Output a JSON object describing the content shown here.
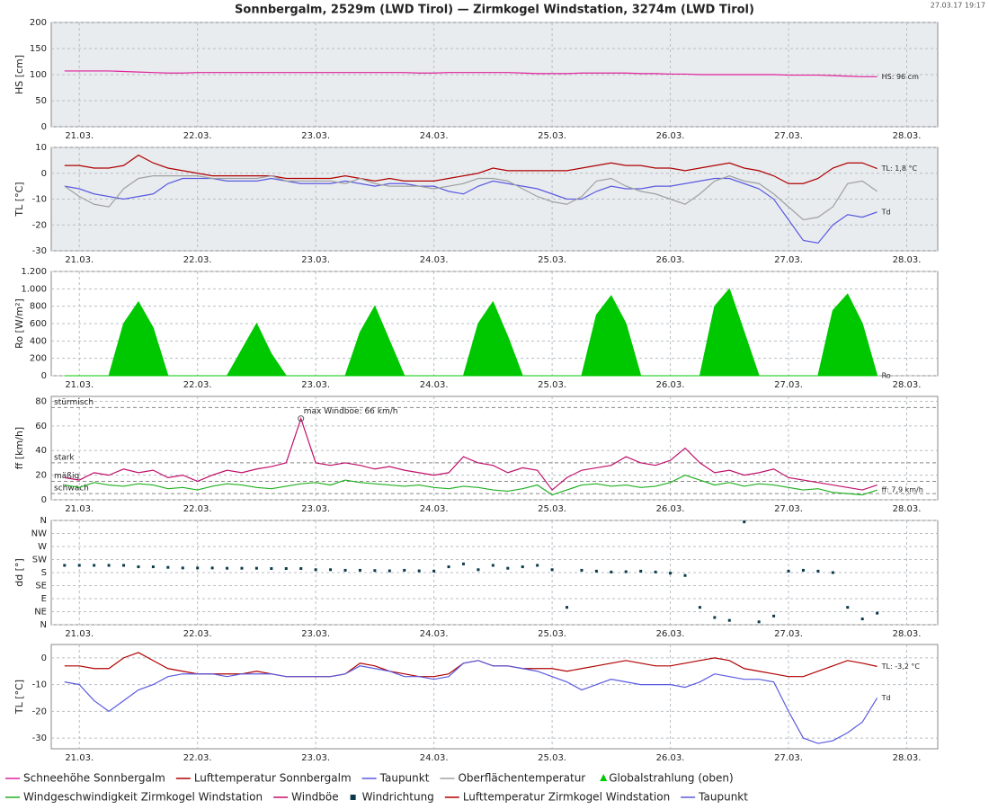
{
  "title": "Sonnbergalm, 2529m (LWD Tirol) — Zirmkogel Windstation, 3274m (LWD Tirol)",
  "timestamp": "27.03.17 19:17",
  "time_axis": {
    "x": [
      -3,
      0,
      3,
      6,
      9,
      12,
      15,
      18,
      21,
      24,
      27,
      30,
      33,
      36,
      39,
      42,
      45,
      48,
      51,
      54,
      57,
      60,
      63,
      66,
      69,
      72,
      75,
      78,
      81,
      84,
      87,
      90,
      93,
      96,
      99,
      102,
      105,
      108,
      111,
      114,
      117,
      120,
      123,
      126,
      129,
      132,
      135,
      138,
      141,
      144,
      147,
      150,
      153,
      156,
      159,
      162
    ],
    "xlim": [
      -5.7,
      174.3
    ],
    "xticks": [
      {
        "value": 0,
        "label": "21.03."
      },
      {
        "value": 24,
        "label": "22.03."
      },
      {
        "value": 48,
        "label": "23.03."
      },
      {
        "value": 72,
        "label": "24.03."
      },
      {
        "value": 96,
        "label": "25.03."
      },
      {
        "value": 120,
        "label": "26.03."
      },
      {
        "value": 144,
        "label": "27.03."
      },
      {
        "value": 168,
        "label": "28.03."
      }
    ]
  },
  "chart_data": [
    {
      "type": "line",
      "ylabel": "HS [cm]",
      "ylabel_color": "#d4178f",
      "background": "#e8ecef",
      "grid": true,
      "ylim": [
        0,
        200
      ],
      "yticks": [
        0,
        50,
        100,
        150,
        200
      ],
      "series": [
        {
          "name": "Schneehöhe Sonnbergalm",
          "color": "#e0209a",
          "end_label": "HS: 96 cm",
          "values": [
            107,
            107,
            107,
            107,
            106,
            105,
            104,
            103,
            103,
            104,
            104,
            104,
            104,
            104,
            104,
            104,
            104,
            104,
            104,
            104,
            104,
            104,
            104,
            104,
            103,
            103,
            104,
            104,
            104,
            104,
            104,
            103,
            102,
            102,
            102,
            103,
            103,
            103,
            103,
            102,
            102,
            101,
            101,
            100,
            100,
            100,
            100,
            100,
            100,
            99,
            99,
            99,
            98,
            97,
            96,
            96
          ]
        }
      ]
    },
    {
      "type": "line",
      "ylabel": "TL [°C]",
      "ylabel_color": "#b00000",
      "background": "#e8ecef",
      "grid": true,
      "ylim": [
        -30,
        10
      ],
      "yticks": [
        -30,
        -20,
        -10,
        0,
        10
      ],
      "series": [
        {
          "name": "Lufttemperatur Sonnbergalm",
          "color": "#b00000",
          "end_label": "TL: 1,8 °C",
          "values": [
            3,
            3,
            2,
            2,
            3,
            7,
            4,
            2,
            1,
            0,
            -1,
            -1,
            -1,
            -1,
            -1,
            -2,
            -2,
            -2,
            -2,
            -1,
            -2,
            -3,
            -2,
            -3,
            -3,
            -3,
            -2,
            -1,
            0,
            2,
            1,
            1,
            1,
            1,
            1,
            2,
            3,
            4,
            3,
            3,
            2,
            2,
            1,
            2,
            3,
            4,
            2,
            1,
            -1,
            -4,
            -4,
            -2,
            2,
            4,
            4,
            1.8
          ]
        },
        {
          "name": "Taupunkt",
          "color": "#5a5ae0",
          "end_label": "Td",
          "values": [
            -5,
            -6,
            -8,
            -9,
            -10,
            -9,
            -8,
            -4,
            -2,
            -2,
            -2,
            -3,
            -3,
            -3,
            -2,
            -3,
            -4,
            -4,
            -4,
            -3,
            -4,
            -5,
            -4,
            -4,
            -5,
            -5,
            -7,
            -8,
            -5,
            -3,
            -4,
            -5,
            -6,
            -8,
            -10,
            -10,
            -7,
            -5,
            -6,
            -6,
            -5,
            -5,
            -4,
            -3,
            -2,
            -2,
            -4,
            -6,
            -10,
            -18,
            -26,
            -27,
            -20,
            -16,
            -17,
            -15
          ]
        },
        {
          "name": "Oberflächentemperatur",
          "color": "#a0a0a0",
          "values": [
            -5,
            -9,
            -12,
            -13,
            -6,
            -2,
            -1,
            -1,
            -1,
            -1,
            -2,
            -2,
            -2,
            -2,
            -1,
            -3,
            -3,
            -3,
            -3,
            -4,
            -2,
            -4,
            -5,
            -5,
            -5,
            -6,
            -5,
            -4,
            -2,
            -2,
            -3,
            -6,
            -9,
            -11,
            -12,
            -9,
            -3,
            -2,
            -5,
            -7,
            -8,
            -10,
            -12,
            -8,
            -3,
            -1,
            -3,
            -4,
            -8,
            -13,
            -18,
            -17,
            -13,
            -4,
            -3,
            -7
          ]
        }
      ]
    },
    {
      "type": "area",
      "ylabel": "Ro [W/m²]",
      "ylabel_color": "#00b000",
      "background": "#ffffff",
      "grid": true,
      "ylim": [
        0,
        1200
      ],
      "yticks": [
        0,
        200,
        400,
        600,
        800,
        {
          "value": 1000,
          "label": "1.000"
        },
        {
          "value": 1200,
          "label": "1.200"
        }
      ],
      "series": [
        {
          "name": "Globalstrahlung (oben)",
          "color": "#00c800",
          "end_label": "Ro",
          "values": [
            0,
            0,
            0,
            0,
            600,
            850,
            550,
            0,
            0,
            0,
            0,
            0,
            300,
            600,
            250,
            0,
            0,
            0,
            0,
            0,
            500,
            800,
            400,
            0,
            0,
            0,
            0,
            0,
            600,
            850,
            450,
            0,
            0,
            0,
            0,
            0,
            700,
            920,
            600,
            0,
            0,
            0,
            0,
            0,
            800,
            1000,
            500,
            0,
            0,
            0,
            0,
            0,
            750,
            940,
            600,
            0
          ]
        }
      ]
    },
    {
      "type": "line",
      "ylabel": "ff [km/h]",
      "ylabel_color": "#00a000",
      "background": "#ffffff",
      "grid": true,
      "ylim": [
        0,
        84
      ],
      "yticks": [
        0,
        20,
        40,
        60,
        80
      ],
      "thresholds": [
        {
          "value": 75,
          "label": "stürmisch"
        },
        {
          "value": 30,
          "label": "stark"
        },
        {
          "value": 15,
          "label": "mäßig"
        },
        {
          "value": 5,
          "label": "schwach"
        }
      ],
      "annotation": {
        "text": "max Windböe: 66 km/h",
        "x": 45,
        "y": 66
      },
      "series": [
        {
          "name": "Windgeschwindigkeit Zirmkogel Windstation",
          "color": "#20b020",
          "end_label": "ff: 7,9 km/h",
          "values": [
            12,
            10,
            14,
            12,
            11,
            13,
            12,
            9,
            10,
            8,
            11,
            13,
            12,
            10,
            9,
            11,
            13,
            14,
            12,
            16,
            14,
            13,
            12,
            11,
            12,
            10,
            9,
            11,
            10,
            8,
            7,
            9,
            12,
            4,
            8,
            12,
            13,
            11,
            12,
            10,
            11,
            14,
            20,
            16,
            12,
            14,
            11,
            13,
            12,
            10,
            8,
            9,
            6,
            5,
            4,
            7.9
          ]
        },
        {
          "name": "Windböe",
          "color": "#c0106a",
          "values": [
            18,
            16,
            22,
            20,
            25,
            22,
            24,
            18,
            20,
            15,
            20,
            24,
            22,
            25,
            27,
            30,
            66,
            30,
            28,
            30,
            28,
            25,
            27,
            24,
            22,
            20,
            22,
            35,
            30,
            28,
            22,
            26,
            24,
            8,
            18,
            24,
            26,
            28,
            35,
            30,
            28,
            32,
            42,
            30,
            22,
            24,
            20,
            22,
            25,
            18,
            16,
            14,
            12,
            10,
            8,
            12
          ]
        }
      ]
    },
    {
      "type": "scatter",
      "ylabel": "dd [°]",
      "ylabel_color": "#0a3a4a",
      "background": "#ffffff",
      "grid": true,
      "ylim": [
        0,
        360
      ],
      "yticks": [
        {
          "value": 0,
          "label": "N"
        },
        {
          "value": 45,
          "label": "NE"
        },
        {
          "value": 90,
          "label": "E"
        },
        {
          "value": 135,
          "label": "SE"
        },
        {
          "value": 180,
          "label": "S"
        },
        {
          "value": 225,
          "label": "SW"
        },
        {
          "value": 270,
          "label": "W"
        },
        {
          "value": 315,
          "label": "NW"
        },
        {
          "value": 360,
          "label": "N"
        }
      ],
      "series": [
        {
          "name": "Windrichtung",
          "color": "#0a3a4a",
          "values": [
            205,
            205,
            205,
            205,
            205,
            200,
            200,
            198,
            196,
            196,
            196,
            195,
            195,
            195,
            194,
            194,
            194,
            190,
            190,
            188,
            188,
            187,
            186,
            188,
            186,
            185,
            200,
            210,
            190,
            205,
            195,
            200,
            205,
            190,
            60,
            188,
            185,
            182,
            183,
            185,
            182,
            178,
            170,
            60,
            25,
            15,
            355,
            10,
            30,
            185,
            188,
            185,
            180,
            60,
            20,
            40
          ]
        }
      ]
    },
    {
      "type": "line",
      "ylabel": "TL [°C]",
      "ylabel_color": "#b00000",
      "background": "#ffffff",
      "grid": true,
      "ylim": [
        -34,
        5
      ],
      "yticks": [
        -30,
        -20,
        -10,
        0
      ],
      "series": [
        {
          "name": "Lufttemperatur Zirmkogel Windstation",
          "color": "#b00000",
          "end_label": "TL: -3,2 °C",
          "values": [
            -3,
            -3,
            -4,
            -4,
            0,
            2,
            -1,
            -4,
            -5,
            -6,
            -6,
            -6,
            -6,
            -5,
            -6,
            -7,
            -7,
            -7,
            -7,
            -6,
            -2,
            -3,
            -5,
            -6,
            -7,
            -7,
            -6,
            -2,
            -1,
            -3,
            -3,
            -4,
            -4,
            -4,
            -5,
            -4,
            -3,
            -2,
            -1,
            -2,
            -3,
            -3,
            -2,
            -1,
            0,
            -1,
            -4,
            -5,
            -6,
            -7,
            -7,
            -5,
            -3,
            -1,
            -2,
            -3.2
          ]
        },
        {
          "name": "Taupunkt",
          "color": "#5a5ae0",
          "end_label": "Td",
          "values": [
            -9,
            -10,
            -16,
            -20,
            -16,
            -12,
            -10,
            -7,
            -6,
            -6,
            -6,
            -7,
            -6,
            -6,
            -6,
            -7,
            -7,
            -7,
            -7,
            -6,
            -3,
            -4,
            -5,
            -7,
            -7,
            -8,
            -7,
            -2,
            -1,
            -3,
            -3,
            -4,
            -5,
            -7,
            -9,
            -12,
            -10,
            -8,
            -9,
            -10,
            -10,
            -10,
            -11,
            -9,
            -6,
            -7,
            -8,
            -8,
            -9,
            -20,
            -30,
            -32,
            -31,
            -28,
            -24,
            -15
          ]
        }
      ]
    }
  ]
}
